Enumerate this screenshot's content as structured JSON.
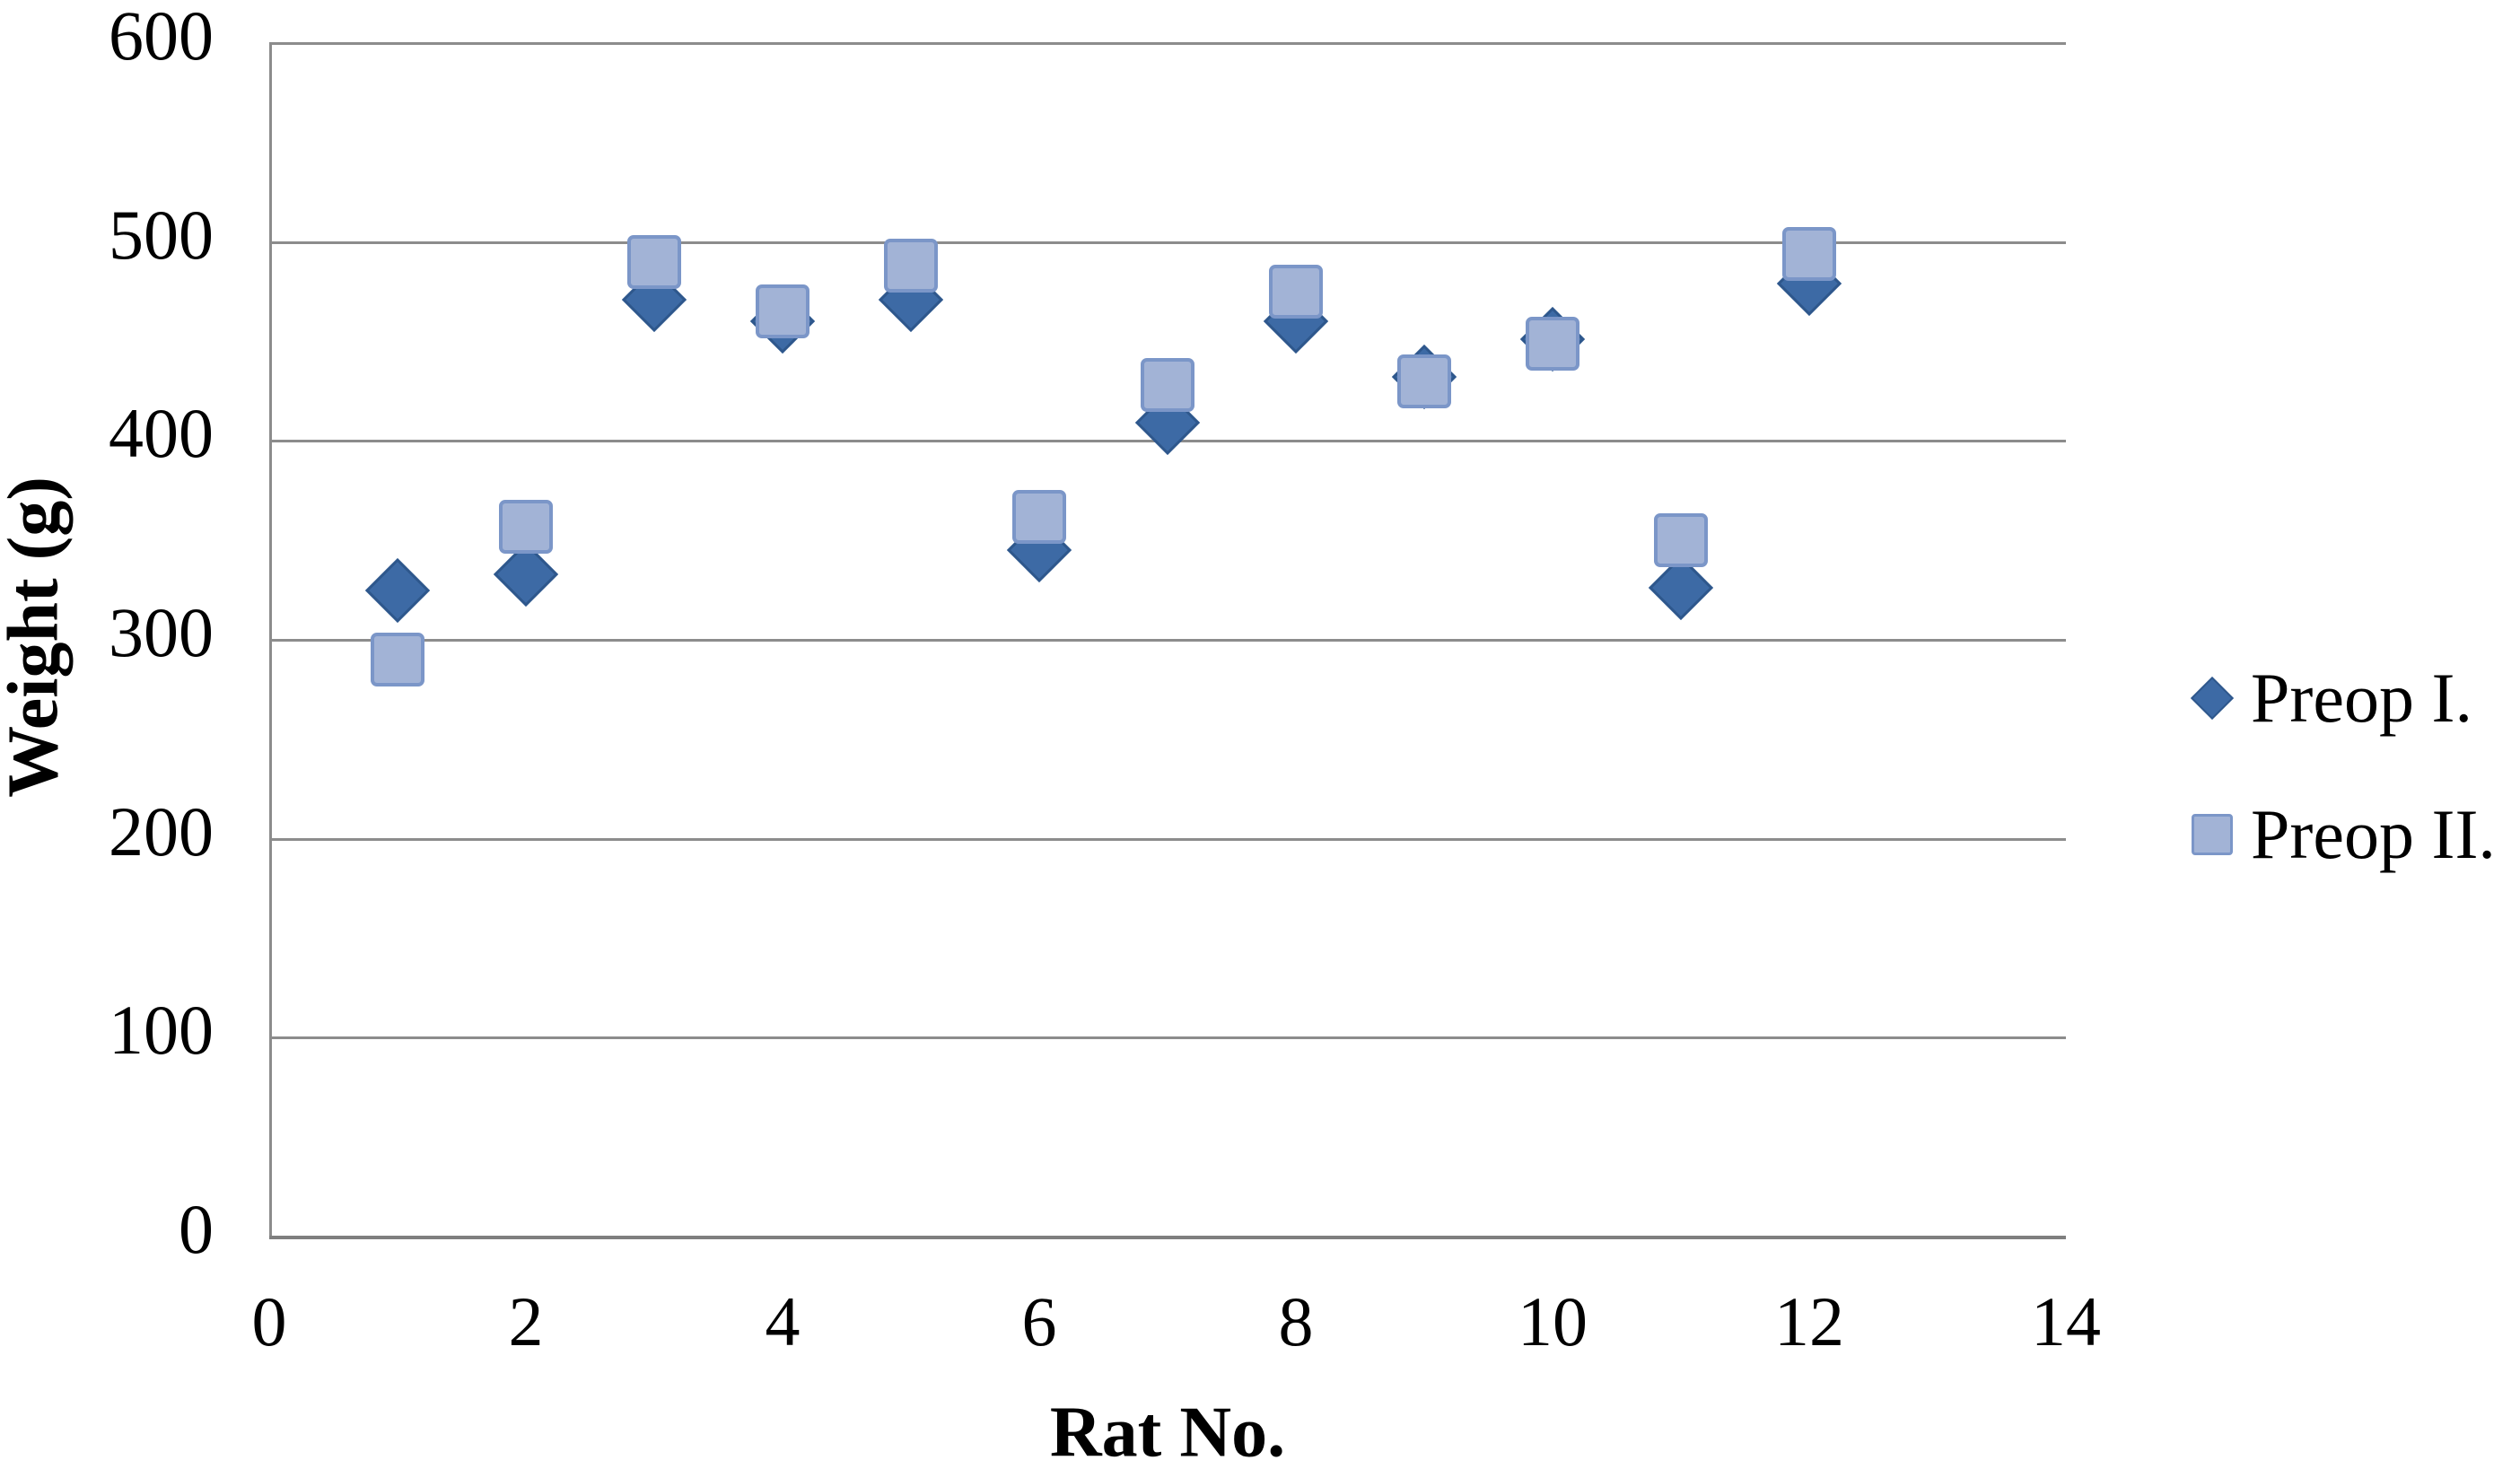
{
  "chart_data": {
    "type": "scatter",
    "title": "",
    "xlabel": "Rat No.",
    "ylabel": "Weight (g)",
    "xlim": [
      0,
      14
    ],
    "ylim": [
      0,
      600
    ],
    "x_ticks": [
      0,
      2,
      4,
      6,
      8,
      10,
      12,
      14
    ],
    "y_ticks": [
      0,
      100,
      200,
      300,
      400,
      500,
      600
    ],
    "grid": "horizontal",
    "legend_position": "right",
    "x": [
      1,
      2,
      3,
      4,
      5,
      6,
      7,
      8,
      9,
      10,
      11,
      12
    ],
    "series": [
      {
        "name": "Preop I.",
        "marker": "diamond",
        "color": "#3d6aa5",
        "border_color": "#2e578c",
        "values": [
          325,
          333,
          471,
          460,
          471,
          345,
          409,
          460,
          432,
          451,
          326,
          479
        ]
      },
      {
        "name": "Preop II.",
        "marker": "square",
        "color": "#a2b3d6",
        "border_color": "#7b96c8",
        "values": [
          290,
          357,
          490,
          465,
          488,
          362,
          428,
          475,
          430,
          449,
          350,
          494
        ]
      }
    ],
    "colors": {
      "gridline": "#8c8c8c",
      "axis_line": "#7f7f7f",
      "text": "#000000",
      "background": "#ffffff"
    }
  }
}
